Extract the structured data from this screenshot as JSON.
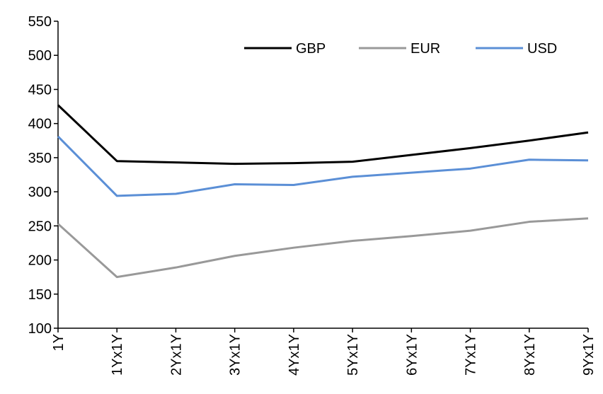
{
  "chart_data": {
    "type": "line",
    "title": "",
    "xlabel": "",
    "ylabel": "",
    "categories": [
      "1Y",
      "1Yx1Y",
      "2Yx1Y",
      "3Yx1Y",
      "4Yx1Y",
      "5Yx1Y",
      "6Yx1Y",
      "7Yx1Y",
      "8Yx1Y",
      "9Yx1Y"
    ],
    "ylim": [
      100,
      550
    ],
    "yticks": [
      100,
      150,
      200,
      250,
      300,
      350,
      400,
      450,
      500,
      550
    ],
    "grid": false,
    "legend_position": "top-right",
    "series": [
      {
        "name": "GBP",
        "color": "#000000",
        "values": [
          427,
          345,
          343,
          341,
          342,
          344,
          354,
          364,
          375,
          387
        ]
      },
      {
        "name": "EUR",
        "color": "#999999",
        "values": [
          253,
          175,
          189,
          206,
          218,
          228,
          235,
          243,
          256,
          261
        ]
      },
      {
        "name": "USD",
        "color": "#5b8fd6",
        "values": [
          381,
          294,
          297,
          311,
          310,
          322,
          328,
          334,
          347,
          346
        ]
      }
    ]
  }
}
